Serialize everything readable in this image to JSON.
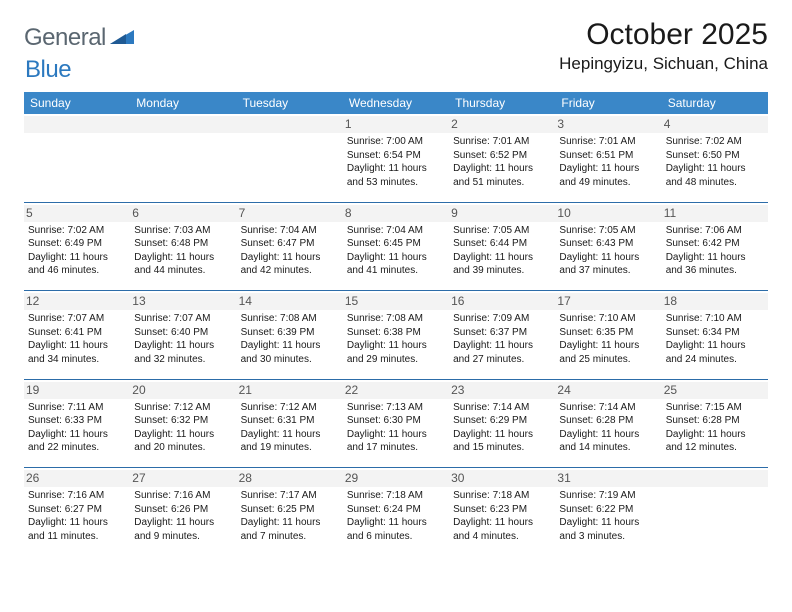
{
  "brand": {
    "general": "General",
    "blue": "Blue"
  },
  "title": "October 2025",
  "location": "Hepingyizu, Sichuan, China",
  "colors": {
    "header_bg": "#3a87c8",
    "header_text": "#ffffff",
    "rule": "#2c6ca8",
    "daynum_bg": "#f3f3f3",
    "text": "#1a1a1a",
    "logo_gray": "#5a6670",
    "logo_blue": "#2c79bf"
  },
  "weekdays": [
    "Sunday",
    "Monday",
    "Tuesday",
    "Wednesday",
    "Thursday",
    "Friday",
    "Saturday"
  ],
  "weeks": [
    [
      {
        "n": "",
        "sr": "",
        "ss": "",
        "dl": ""
      },
      {
        "n": "",
        "sr": "",
        "ss": "",
        "dl": ""
      },
      {
        "n": "",
        "sr": "",
        "ss": "",
        "dl": ""
      },
      {
        "n": "1",
        "sr": "Sunrise: 7:00 AM",
        "ss": "Sunset: 6:54 PM",
        "dl": "Daylight: 11 hours and 53 minutes."
      },
      {
        "n": "2",
        "sr": "Sunrise: 7:01 AM",
        "ss": "Sunset: 6:52 PM",
        "dl": "Daylight: 11 hours and 51 minutes."
      },
      {
        "n": "3",
        "sr": "Sunrise: 7:01 AM",
        "ss": "Sunset: 6:51 PM",
        "dl": "Daylight: 11 hours and 49 minutes."
      },
      {
        "n": "4",
        "sr": "Sunrise: 7:02 AM",
        "ss": "Sunset: 6:50 PM",
        "dl": "Daylight: 11 hours and 48 minutes."
      }
    ],
    [
      {
        "n": "5",
        "sr": "Sunrise: 7:02 AM",
        "ss": "Sunset: 6:49 PM",
        "dl": "Daylight: 11 hours and 46 minutes."
      },
      {
        "n": "6",
        "sr": "Sunrise: 7:03 AM",
        "ss": "Sunset: 6:48 PM",
        "dl": "Daylight: 11 hours and 44 minutes."
      },
      {
        "n": "7",
        "sr": "Sunrise: 7:04 AM",
        "ss": "Sunset: 6:47 PM",
        "dl": "Daylight: 11 hours and 42 minutes."
      },
      {
        "n": "8",
        "sr": "Sunrise: 7:04 AM",
        "ss": "Sunset: 6:45 PM",
        "dl": "Daylight: 11 hours and 41 minutes."
      },
      {
        "n": "9",
        "sr": "Sunrise: 7:05 AM",
        "ss": "Sunset: 6:44 PM",
        "dl": "Daylight: 11 hours and 39 minutes."
      },
      {
        "n": "10",
        "sr": "Sunrise: 7:05 AM",
        "ss": "Sunset: 6:43 PM",
        "dl": "Daylight: 11 hours and 37 minutes."
      },
      {
        "n": "11",
        "sr": "Sunrise: 7:06 AM",
        "ss": "Sunset: 6:42 PM",
        "dl": "Daylight: 11 hours and 36 minutes."
      }
    ],
    [
      {
        "n": "12",
        "sr": "Sunrise: 7:07 AM",
        "ss": "Sunset: 6:41 PM",
        "dl": "Daylight: 11 hours and 34 minutes."
      },
      {
        "n": "13",
        "sr": "Sunrise: 7:07 AM",
        "ss": "Sunset: 6:40 PM",
        "dl": "Daylight: 11 hours and 32 minutes."
      },
      {
        "n": "14",
        "sr": "Sunrise: 7:08 AM",
        "ss": "Sunset: 6:39 PM",
        "dl": "Daylight: 11 hours and 30 minutes."
      },
      {
        "n": "15",
        "sr": "Sunrise: 7:08 AM",
        "ss": "Sunset: 6:38 PM",
        "dl": "Daylight: 11 hours and 29 minutes."
      },
      {
        "n": "16",
        "sr": "Sunrise: 7:09 AM",
        "ss": "Sunset: 6:37 PM",
        "dl": "Daylight: 11 hours and 27 minutes."
      },
      {
        "n": "17",
        "sr": "Sunrise: 7:10 AM",
        "ss": "Sunset: 6:35 PM",
        "dl": "Daylight: 11 hours and 25 minutes."
      },
      {
        "n": "18",
        "sr": "Sunrise: 7:10 AM",
        "ss": "Sunset: 6:34 PM",
        "dl": "Daylight: 11 hours and 24 minutes."
      }
    ],
    [
      {
        "n": "19",
        "sr": "Sunrise: 7:11 AM",
        "ss": "Sunset: 6:33 PM",
        "dl": "Daylight: 11 hours and 22 minutes."
      },
      {
        "n": "20",
        "sr": "Sunrise: 7:12 AM",
        "ss": "Sunset: 6:32 PM",
        "dl": "Daylight: 11 hours and 20 minutes."
      },
      {
        "n": "21",
        "sr": "Sunrise: 7:12 AM",
        "ss": "Sunset: 6:31 PM",
        "dl": "Daylight: 11 hours and 19 minutes."
      },
      {
        "n": "22",
        "sr": "Sunrise: 7:13 AM",
        "ss": "Sunset: 6:30 PM",
        "dl": "Daylight: 11 hours and 17 minutes."
      },
      {
        "n": "23",
        "sr": "Sunrise: 7:14 AM",
        "ss": "Sunset: 6:29 PM",
        "dl": "Daylight: 11 hours and 15 minutes."
      },
      {
        "n": "24",
        "sr": "Sunrise: 7:14 AM",
        "ss": "Sunset: 6:28 PM",
        "dl": "Daylight: 11 hours and 14 minutes."
      },
      {
        "n": "25",
        "sr": "Sunrise: 7:15 AM",
        "ss": "Sunset: 6:28 PM",
        "dl": "Daylight: 11 hours and 12 minutes."
      }
    ],
    [
      {
        "n": "26",
        "sr": "Sunrise: 7:16 AM",
        "ss": "Sunset: 6:27 PM",
        "dl": "Daylight: 11 hours and 11 minutes."
      },
      {
        "n": "27",
        "sr": "Sunrise: 7:16 AM",
        "ss": "Sunset: 6:26 PM",
        "dl": "Daylight: 11 hours and 9 minutes."
      },
      {
        "n": "28",
        "sr": "Sunrise: 7:17 AM",
        "ss": "Sunset: 6:25 PM",
        "dl": "Daylight: 11 hours and 7 minutes."
      },
      {
        "n": "29",
        "sr": "Sunrise: 7:18 AM",
        "ss": "Sunset: 6:24 PM",
        "dl": "Daylight: 11 hours and 6 minutes."
      },
      {
        "n": "30",
        "sr": "Sunrise: 7:18 AM",
        "ss": "Sunset: 6:23 PM",
        "dl": "Daylight: 11 hours and 4 minutes."
      },
      {
        "n": "31",
        "sr": "Sunrise: 7:19 AM",
        "ss": "Sunset: 6:22 PM",
        "dl": "Daylight: 11 hours and 3 minutes."
      },
      {
        "n": "",
        "sr": "",
        "ss": "",
        "dl": ""
      }
    ]
  ]
}
